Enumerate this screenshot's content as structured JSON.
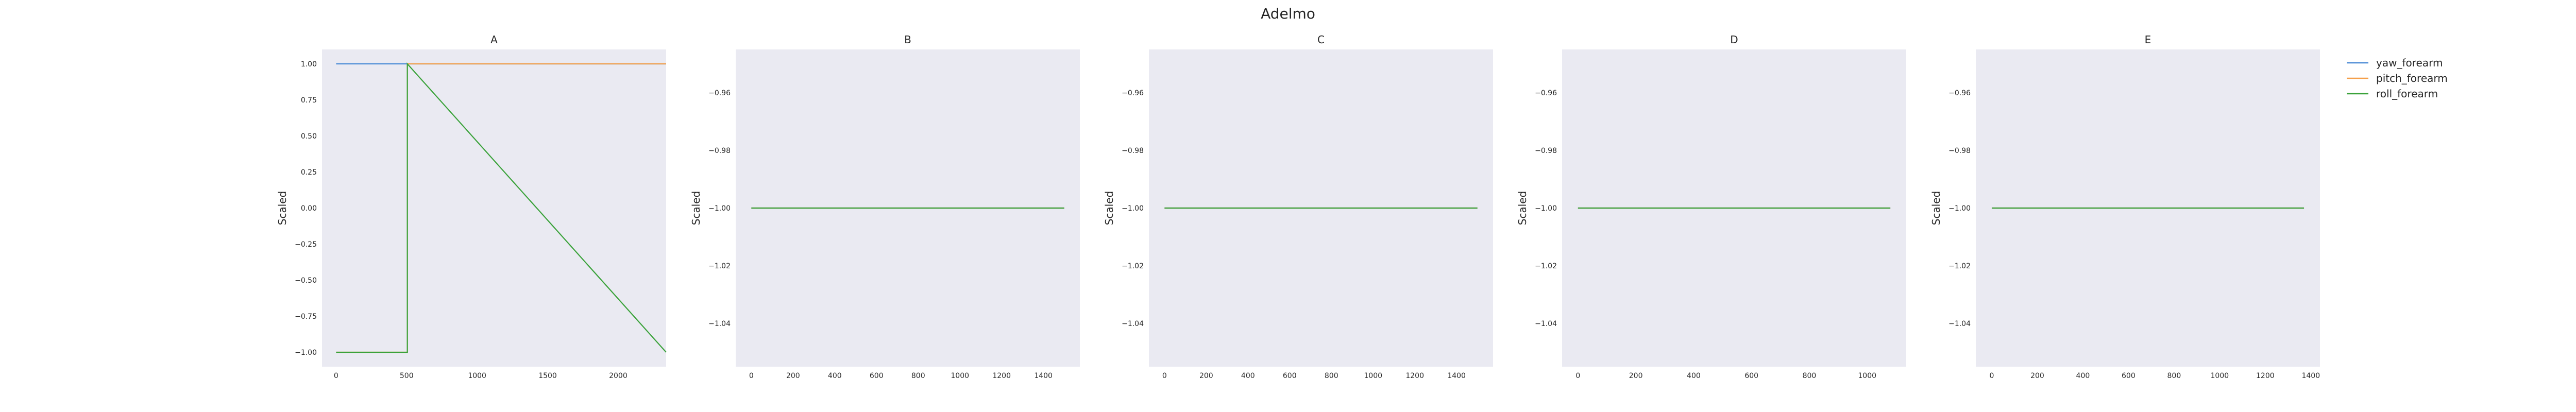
{
  "figure": {
    "title": "Adelmo"
  },
  "legend": {
    "items": [
      {
        "label": "yaw_forearm",
        "color": "#4c8bd6"
      },
      {
        "label": "pitch_forearm",
        "color": "#f5a04a"
      },
      {
        "label": "roll_forearm",
        "color": "#3aa23a"
      }
    ]
  },
  "chart_data": [
    {
      "type": "line",
      "title": "A",
      "ylabel": "Scaled",
      "xlim": [
        -100,
        2340
      ],
      "ylim": [
        -1.1,
        1.1
      ],
      "xticks": [
        0,
        500,
        1000,
        1500,
        2000
      ],
      "xtick_labels": [
        "0",
        "500",
        "1000",
        "1500",
        "2000"
      ],
      "yticks": [
        1.0,
        0.75,
        0.5,
        0.25,
        0.0,
        -0.25,
        -0.5,
        -0.75,
        -1.0
      ],
      "ytick_labels": [
        "1.00",
        "0.75",
        "0.50",
        "0.25",
        "0.00",
        "−0.25",
        "−0.50",
        "−0.75",
        "−1.00"
      ],
      "series": [
        {
          "name": "yaw_forearm",
          "x": [
            0,
            2340
          ],
          "y": [
            1.0,
            1.0
          ]
        },
        {
          "name": "pitch_forearm",
          "x": [
            0,
            505,
            505,
            2340
          ],
          "y": [
            -1.0,
            -1.0,
            1.0,
            1.0
          ]
        },
        {
          "name": "roll_forearm",
          "x": [
            0,
            505,
            505,
            2340
          ],
          "y": [
            -1.0,
            -1.0,
            1.0,
            -1.0
          ]
        }
      ]
    },
    {
      "type": "line",
      "title": "B",
      "ylabel": "Scaled",
      "xlim": [
        -75,
        1575
      ],
      "ylim": [
        -1.055,
        -0.945
      ],
      "xticks": [
        0,
        200,
        400,
        600,
        800,
        1000,
        1200,
        1400
      ],
      "xtick_labels": [
        "0",
        "200",
        "400",
        "600",
        "800",
        "1000",
        "1200",
        "1400"
      ],
      "yticks": [
        -0.96,
        -0.98,
        -1.0,
        -1.02,
        -1.04
      ],
      "ytick_labels": [
        "−0.96",
        "−0.98",
        "−1.00",
        "−1.02",
        "−1.04"
      ],
      "series": [
        {
          "name": "yaw_forearm",
          "x": [
            0,
            1500
          ],
          "y": [
            -1.0,
            -1.0
          ]
        },
        {
          "name": "pitch_forearm",
          "x": [
            0,
            1500
          ],
          "y": [
            -1.0,
            -1.0
          ]
        },
        {
          "name": "roll_forearm",
          "x": [
            0,
            1500
          ],
          "y": [
            -1.0,
            -1.0
          ]
        }
      ]
    },
    {
      "type": "line",
      "title": "C",
      "ylabel": "Scaled",
      "xlim": [
        -75,
        1575
      ],
      "ylim": [
        -1.055,
        -0.945
      ],
      "xticks": [
        0,
        200,
        400,
        600,
        800,
        1000,
        1200,
        1400
      ],
      "xtick_labels": [
        "0",
        "200",
        "400",
        "600",
        "800",
        "1000",
        "1200",
        "1400"
      ],
      "yticks": [
        -0.96,
        -0.98,
        -1.0,
        -1.02,
        -1.04
      ],
      "ytick_labels": [
        "−0.96",
        "−0.98",
        "−1.00",
        "−1.02",
        "−1.04"
      ],
      "series": [
        {
          "name": "yaw_forearm",
          "x": [
            0,
            1500
          ],
          "y": [
            -1.0,
            -1.0
          ]
        },
        {
          "name": "pitch_forearm",
          "x": [
            0,
            1500
          ],
          "y": [
            -1.0,
            -1.0
          ]
        },
        {
          "name": "roll_forearm",
          "x": [
            0,
            1500
          ],
          "y": [
            -1.0,
            -1.0
          ]
        }
      ]
    },
    {
      "type": "line",
      "title": "D",
      "ylabel": "Scaled",
      "xlim": [
        -55,
        1135
      ],
      "ylim": [
        -1.055,
        -0.945
      ],
      "xticks": [
        0,
        200,
        400,
        600,
        800,
        1000
      ],
      "xtick_labels": [
        "0",
        "200",
        "400",
        "600",
        "800",
        "1000"
      ],
      "yticks": [
        -0.96,
        -0.98,
        -1.0,
        -1.02,
        -1.04
      ],
      "ytick_labels": [
        "−0.96",
        "−0.98",
        "−1.00",
        "−1.02",
        "−1.04"
      ],
      "series": [
        {
          "name": "yaw_forearm",
          "x": [
            0,
            1080
          ],
          "y": [
            -1.0,
            -1.0
          ]
        },
        {
          "name": "pitch_forearm",
          "x": [
            0,
            1080
          ],
          "y": [
            -1.0,
            -1.0
          ]
        },
        {
          "name": "roll_forearm",
          "x": [
            0,
            1080
          ],
          "y": [
            -1.0,
            -1.0
          ]
        }
      ]
    },
    {
      "type": "line",
      "title": "E",
      "ylabel": "Scaled",
      "xlim": [
        -70,
        1440
      ],
      "ylim": [
        -1.055,
        -0.945
      ],
      "xticks": [
        0,
        200,
        400,
        600,
        800,
        1000,
        1200,
        1400
      ],
      "xtick_labels": [
        "0",
        "200",
        "400",
        "600",
        "800",
        "1000",
        "1200",
        "1400"
      ],
      "yticks": [
        -0.96,
        -0.98,
        -1.0,
        -1.02,
        -1.04
      ],
      "ytick_labels": [
        "−0.96",
        "−0.98",
        "−1.00",
        "−1.02",
        "−1.04"
      ],
      "series": [
        {
          "name": "yaw_forearm",
          "x": [
            0,
            1370
          ],
          "y": [
            -1.0,
            -1.0
          ]
        },
        {
          "name": "pitch_forearm",
          "x": [
            0,
            1370
          ],
          "y": [
            -1.0,
            -1.0
          ]
        },
        {
          "name": "roll_forearm",
          "x": [
            0,
            1370
          ],
          "y": [
            -1.0,
            -1.0
          ]
        }
      ]
    }
  ]
}
